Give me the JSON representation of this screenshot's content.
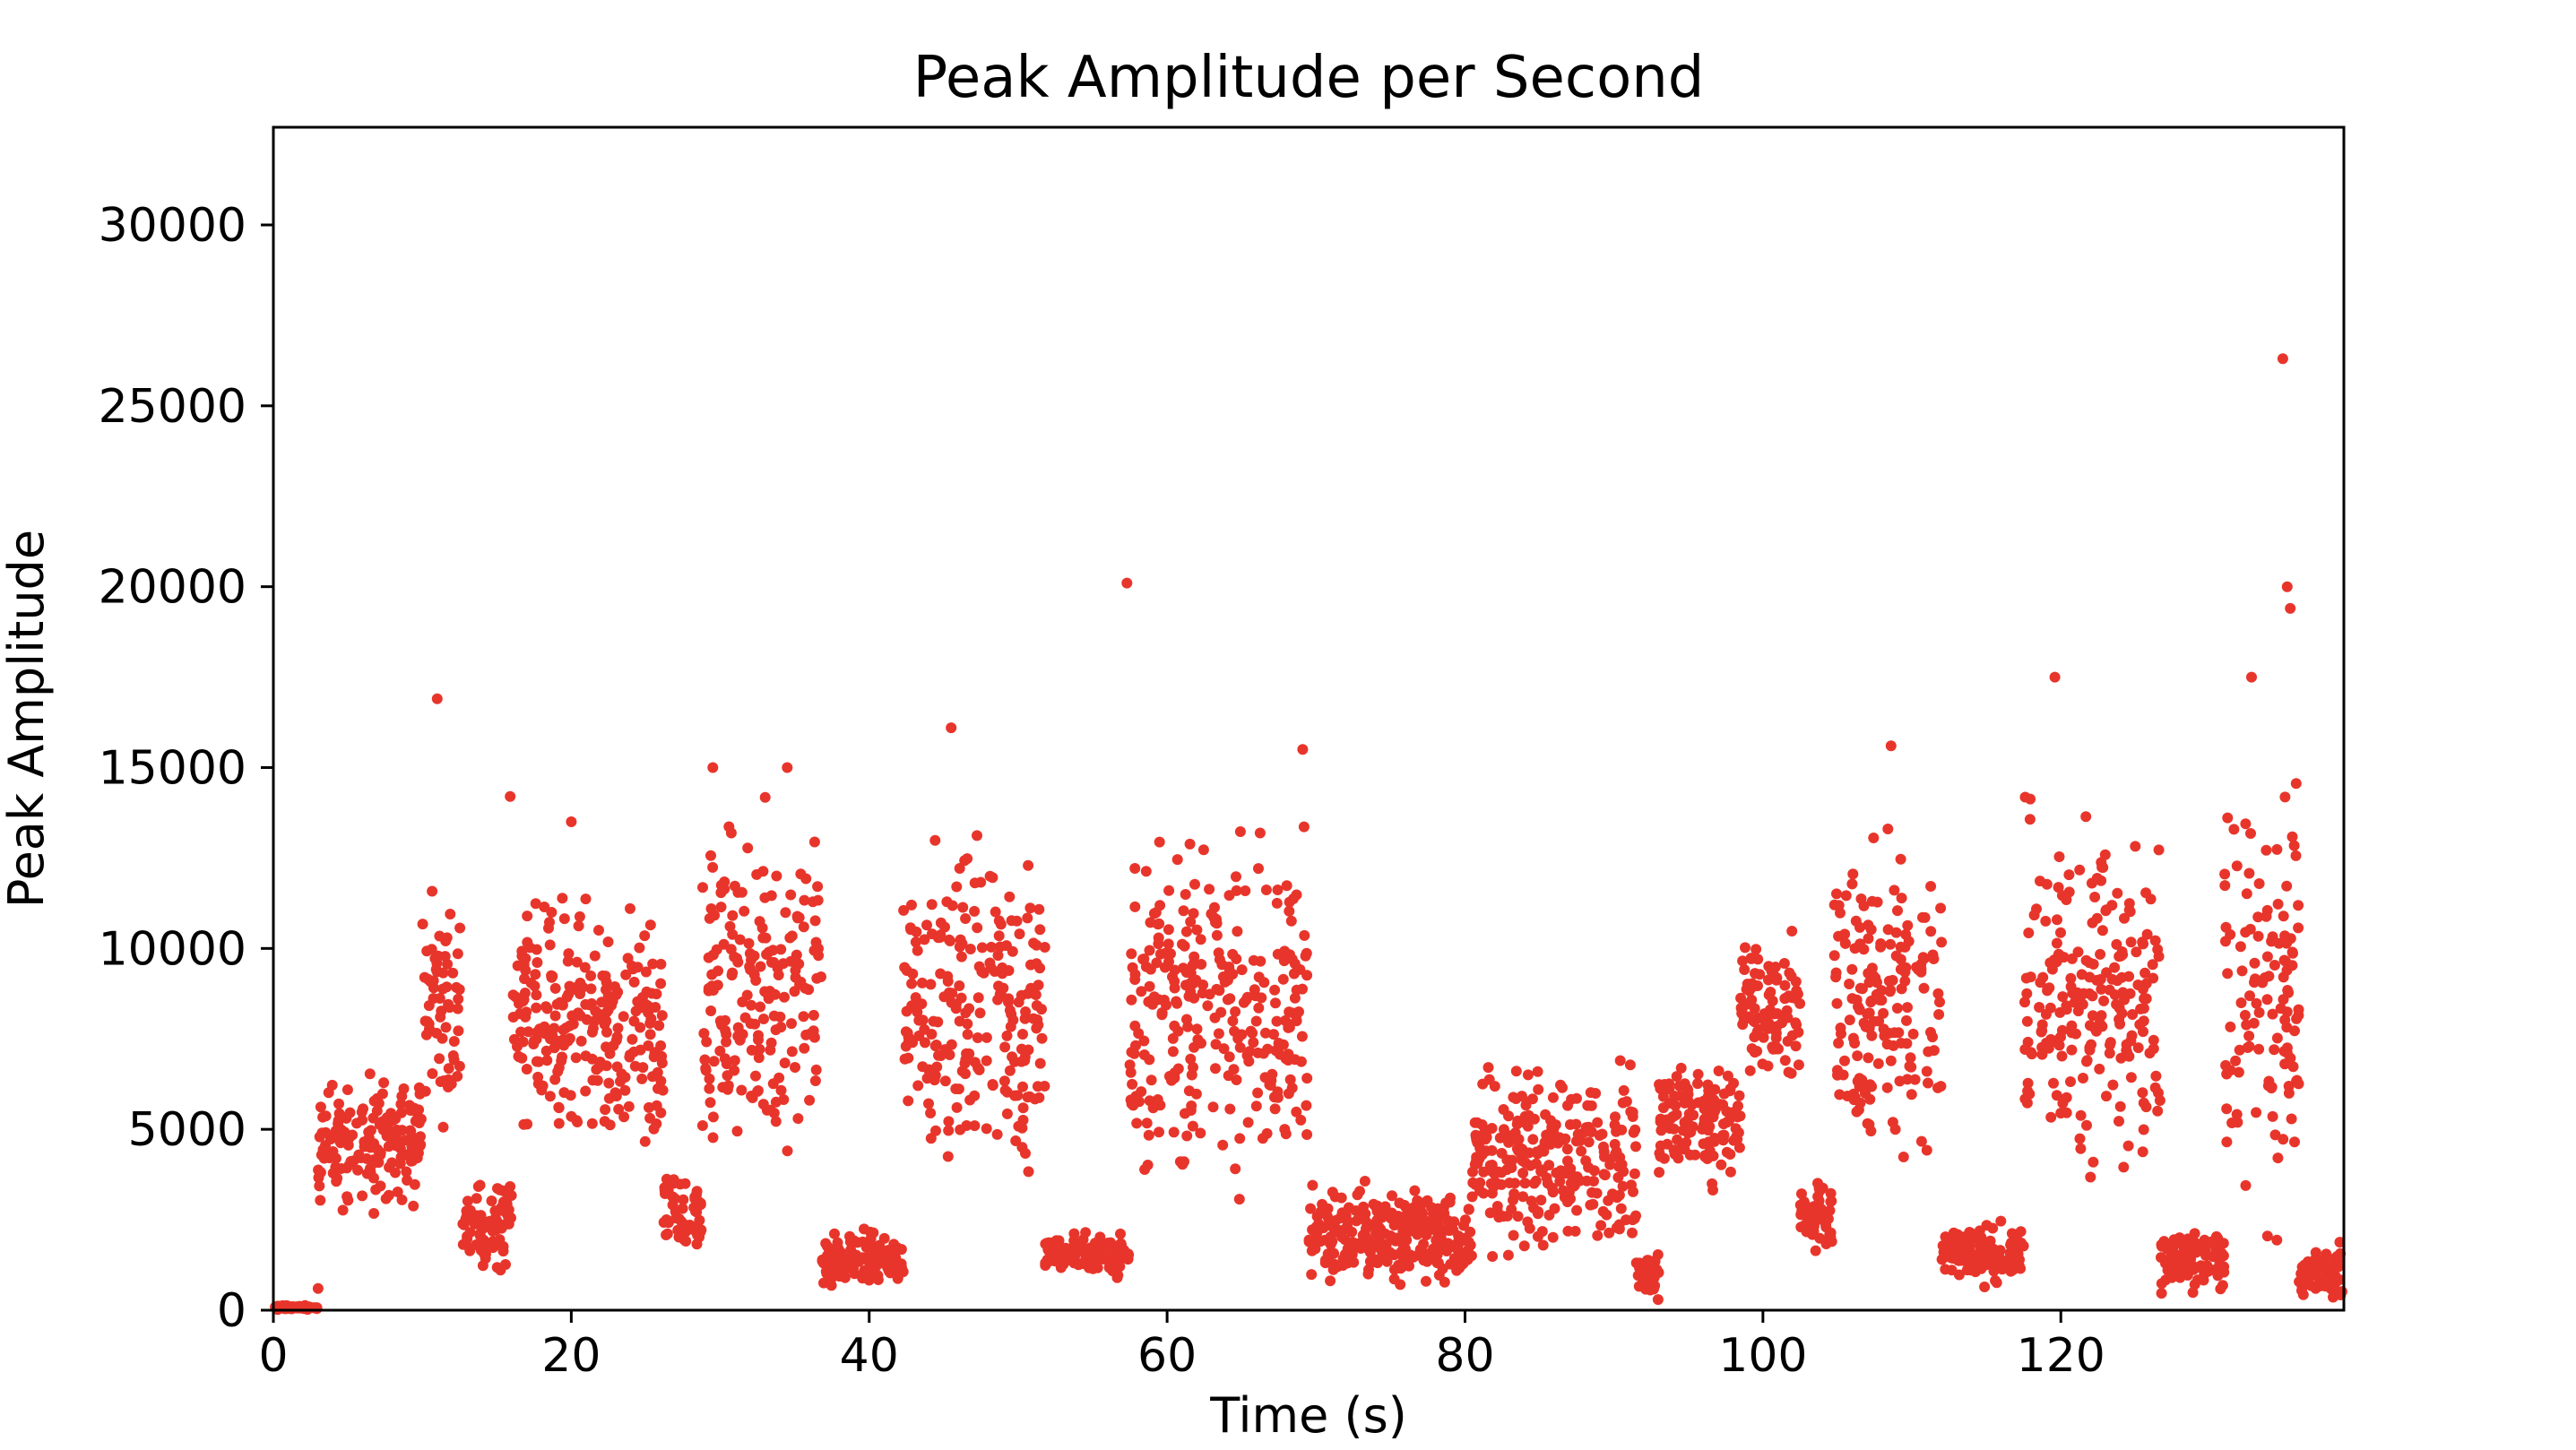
{
  "chart_data": {
    "type": "scatter",
    "title": "Peak Amplitude per Second",
    "xlabel": "Time (s)",
    "ylabel": "Peak Amplitude",
    "xlim": [
      0,
      139
    ],
    "ylim": [
      0,
      32700
    ],
    "x_ticks": [
      0,
      20,
      40,
      60,
      80,
      100,
      120
    ],
    "y_ticks": [
      0,
      5000,
      10000,
      15000,
      20000,
      25000,
      30000
    ],
    "x_tick_labels": [
      "0",
      "20",
      "40",
      "60",
      "80",
      "100",
      "120"
    ],
    "y_tick_labels": [
      "0",
      "5000",
      "10000",
      "15000",
      "20000",
      "25000",
      "30000"
    ],
    "grid": false,
    "series": [
      {
        "name": "peak amplitude",
        "color": "#e8352b",
        "points_per_second": 24,
        "segments": [
          {
            "start": 0,
            "end": 3.0,
            "low": 0,
            "high": 150
          },
          {
            "start": 3.0,
            "end": 10.0,
            "low": 2300,
            "high": 7000
          },
          {
            "start": 10.0,
            "end": 12.6,
            "low": 4500,
            "high": 12500
          },
          {
            "start": 12.6,
            "end": 16.0,
            "low": 800,
            "high": 4000
          },
          {
            "start": 16.0,
            "end": 22.0,
            "low": 4000,
            "high": 12300
          },
          {
            "start": 22.0,
            "end": 26.2,
            "low": 3000,
            "high": 11700
          },
          {
            "start": 26.2,
            "end": 28.8,
            "low": 1000,
            "high": 4000
          },
          {
            "start": 28.8,
            "end": 36.8,
            "low": 2400,
            "high": 15000
          },
          {
            "start": 36.8,
            "end": 42.3,
            "low": 400,
            "high": 2400
          },
          {
            "start": 42.3,
            "end": 51.8,
            "low": 2000,
            "high": 14800
          },
          {
            "start": 51.8,
            "end": 57.5,
            "low": 800,
            "high": 2300
          },
          {
            "start": 57.5,
            "end": 69.5,
            "low": 2300,
            "high": 14500
          },
          {
            "start": 69.5,
            "end": 80.5,
            "low": 300,
            "high": 3800
          },
          {
            "start": 80.5,
            "end": 91.5,
            "low": 800,
            "high": 7500
          },
          {
            "start": 91.5,
            "end": 93.0,
            "low": 0,
            "high": 2000
          },
          {
            "start": 93.0,
            "end": 98.5,
            "low": 3000,
            "high": 7500
          },
          {
            "start": 98.5,
            "end": 102.5,
            "low": 5500,
            "high": 11000
          },
          {
            "start": 102.5,
            "end": 104.8,
            "low": 1400,
            "high": 4000
          },
          {
            "start": 104.8,
            "end": 112.0,
            "low": 2600,
            "high": 14200
          },
          {
            "start": 112.0,
            "end": 117.5,
            "low": 500,
            "high": 2600
          },
          {
            "start": 117.5,
            "end": 126.7,
            "low": 2500,
            "high": 15000
          },
          {
            "start": 126.7,
            "end": 131.0,
            "low": 300,
            "high": 2400
          },
          {
            "start": 131.0,
            "end": 136.0,
            "low": 1500,
            "high": 16000
          },
          {
            "start": 136.0,
            "end": 139.0,
            "low": 0,
            "high": 2000
          }
        ],
        "outliers": [
          {
            "x": 3,
            "y": 600
          },
          {
            "x": 11,
            "y": 16900
          },
          {
            "x": 15.9,
            "y": 14200
          },
          {
            "x": 20,
            "y": 13500
          },
          {
            "x": 29.5,
            "y": 15000
          },
          {
            "x": 34.5,
            "y": 15000
          },
          {
            "x": 45.5,
            "y": 16100
          },
          {
            "x": 57.3,
            "y": 20100
          },
          {
            "x": 69.1,
            "y": 15500
          },
          {
            "x": 108.6,
            "y": 15600
          },
          {
            "x": 119.6,
            "y": 17500
          },
          {
            "x": 132.8,
            "y": 17500
          },
          {
            "x": 134.9,
            "y": 26300
          },
          {
            "x": 135.2,
            "y": 20000
          },
          {
            "x": 135.4,
            "y": 19400
          }
        ]
      }
    ]
  }
}
